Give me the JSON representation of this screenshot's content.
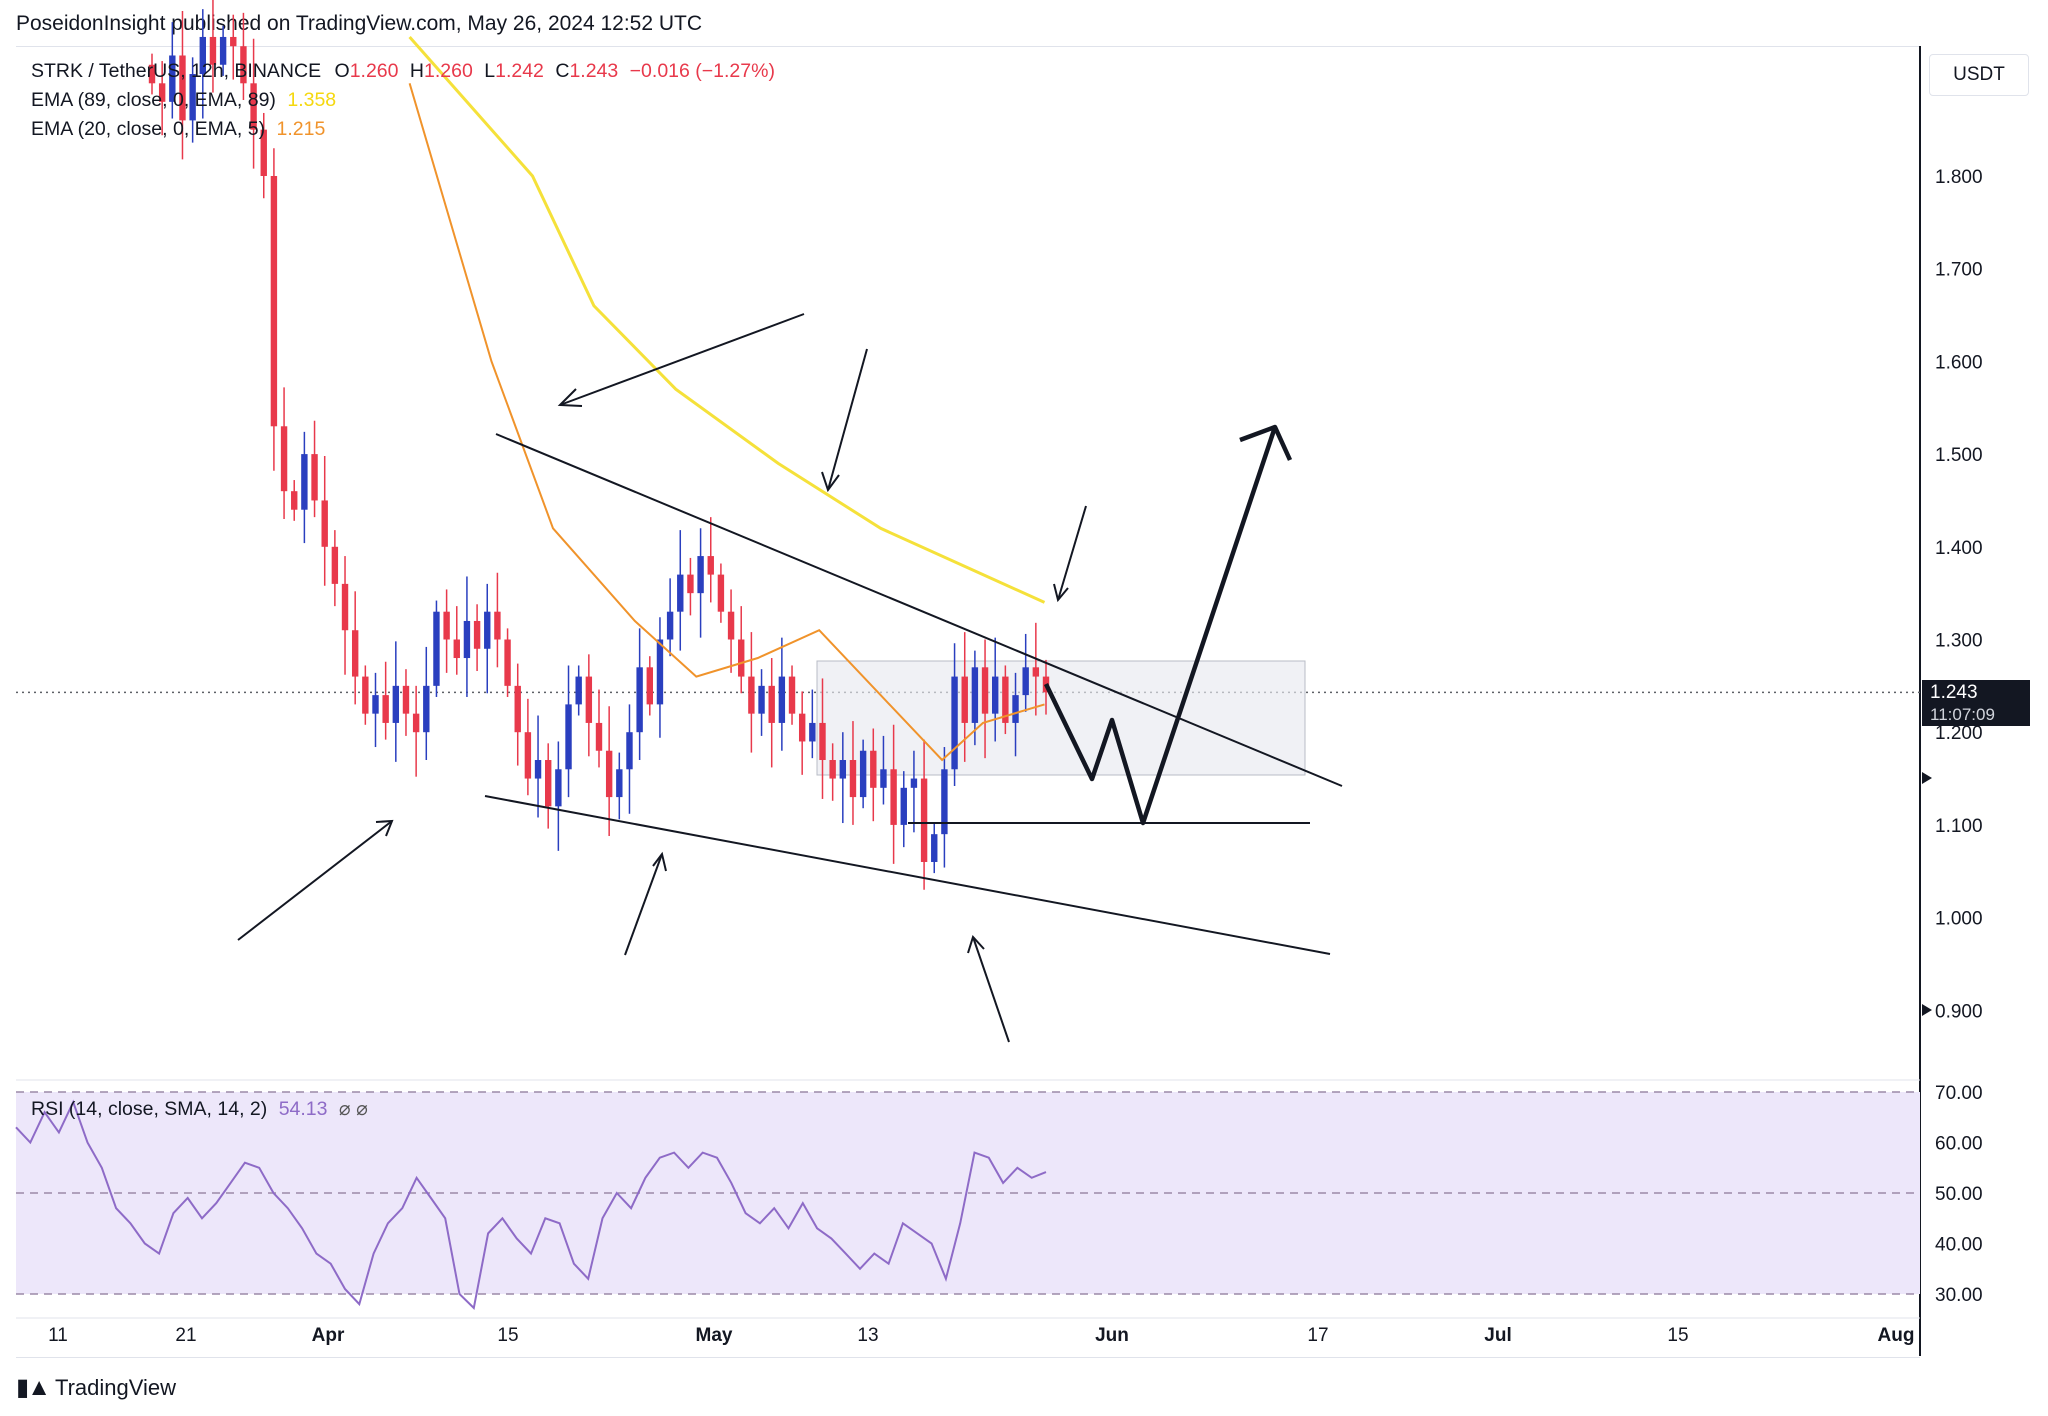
{
  "header": {
    "publisher_line": "PoseidonInsight published on TradingView.com, May 26, 2024 12:52 UTC"
  },
  "legend": {
    "symbol": "STRK / TetherUS, 12h, BINANCE",
    "o_label": "O",
    "o_value": "1.260",
    "h_label": "H",
    "h_value": "1.260",
    "l_label": "L",
    "l_value": "1.242",
    "c_label": "C",
    "c_value": "1.243",
    "change": "−0.016 (−1.27%)",
    "ema89_label": "EMA (89, close, 0, EMA, 89)",
    "ema89_value": "1.358",
    "ema20_label": "EMA (20, close, 0, EMA, 5)",
    "ema20_value": "1.215"
  },
  "rsi_legend": {
    "label": "RSI (14, close, SMA, 14, 2)",
    "value": "54.13",
    "icons": "⌀ ⌀"
  },
  "currency_box": "USDT",
  "last_price": {
    "value": "1.243",
    "countdown": "11:07:09"
  },
  "footer": {
    "brand": "TradingView"
  },
  "colors": {
    "up": "#2a3fbf",
    "down": "#e8394b",
    "ema89": "#f5e13a",
    "ema20": "#f0932b",
    "rsi": "#8e6bc7",
    "rsi_band": "#ede7fa"
  },
  "chart_data": {
    "type": "candlestick",
    "symbol": "STRK / TetherUS",
    "timeframe": "12h",
    "y_axis": {
      "ticks": [
        "1.800",
        "1.700",
        "1.600",
        "1.500",
        "1.400",
        "1.300",
        "1.200",
        "1.100",
        "1.000",
        "0.900"
      ],
      "range": [
        0.83,
        1.95
      ]
    },
    "x_axis": {
      "ticks": [
        "11",
        "21",
        "Apr",
        "15",
        "May",
        "13",
        "Jun",
        "17",
        "Jul",
        "15",
        "Aug"
      ]
    },
    "current_price": 1.243,
    "ohlc_path": [
      1.9,
      1.88,
      1.93,
      1.86,
      1.91,
      1.95,
      1.92,
      1.95,
      1.94,
      1.9,
      1.85,
      1.8,
      1.53,
      1.46,
      1.44,
      1.5,
      1.45,
      1.4,
      1.36,
      1.31,
      1.26,
      1.22,
      1.24,
      1.21,
      1.25,
      1.22,
      1.2,
      1.25,
      1.33,
      1.3,
      1.28,
      1.32,
      1.29,
      1.33,
      1.3,
      1.25,
      1.2,
      1.15,
      1.17,
      1.12,
      1.16,
      1.23,
      1.26,
      1.21,
      1.18,
      1.13,
      1.16,
      1.2,
      1.27,
      1.23,
      1.3,
      1.33,
      1.37,
      1.35,
      1.39,
      1.37,
      1.33,
      1.3,
      1.26,
      1.22,
      1.25,
      1.21,
      1.26,
      1.22,
      1.19,
      1.21,
      1.17,
      1.15,
      1.17,
      1.13,
      1.18,
      1.14,
      1.16,
      1.1,
      1.14,
      1.15,
      1.06,
      1.09,
      1.16,
      1.26,
      1.21,
      1.27,
      1.22,
      1.26,
      1.21,
      1.24,
      1.27,
      1.26,
      1.243
    ],
    "ema89": [
      [
        0.2,
        1.95
      ],
      [
        0.26,
        1.8
      ],
      [
        0.29,
        1.66
      ],
      [
        0.33,
        1.57
      ],
      [
        0.38,
        1.49
      ],
      [
        0.43,
        1.42
      ],
      [
        0.48,
        1.37
      ],
      [
        0.51,
        1.34
      ]
    ],
    "ema20": [
      [
        0.2,
        1.9
      ],
      [
        0.24,
        1.6
      ],
      [
        0.27,
        1.42
      ],
      [
        0.31,
        1.32
      ],
      [
        0.34,
        1.26
      ],
      [
        0.37,
        1.28
      ],
      [
        0.4,
        1.31
      ],
      [
        0.43,
        1.24
      ],
      [
        0.46,
        1.17
      ],
      [
        0.48,
        1.21
      ],
      [
        0.51,
        1.23
      ]
    ],
    "rsi": {
      "overbought": 70,
      "mid": 50,
      "oversold": 30,
      "current": 54.13,
      "ticks": [
        "70.00",
        "60.00",
        "50.00",
        "40.00",
        "30.00"
      ],
      "values": [
        63,
        60,
        66,
        62,
        68,
        60,
        55,
        47,
        44,
        40,
        38,
        46,
        49,
        45,
        48,
        52,
        56,
        55,
        50,
        47,
        43,
        38,
        36,
        31,
        28,
        38,
        44,
        47,
        53,
        49,
        45,
        30,
        26,
        42,
        45,
        41,
        38,
        45,
        44,
        36,
        33,
        45,
        50,
        47,
        53,
        57,
        58,
        55,
        58,
        57,
        52,
        46,
        44,
        47,
        43,
        48,
        43,
        41,
        38,
        35,
        38,
        36,
        44,
        42,
        40,
        33,
        44,
        58,
        57,
        52,
        55,
        53,
        54.13
      ]
    }
  }
}
